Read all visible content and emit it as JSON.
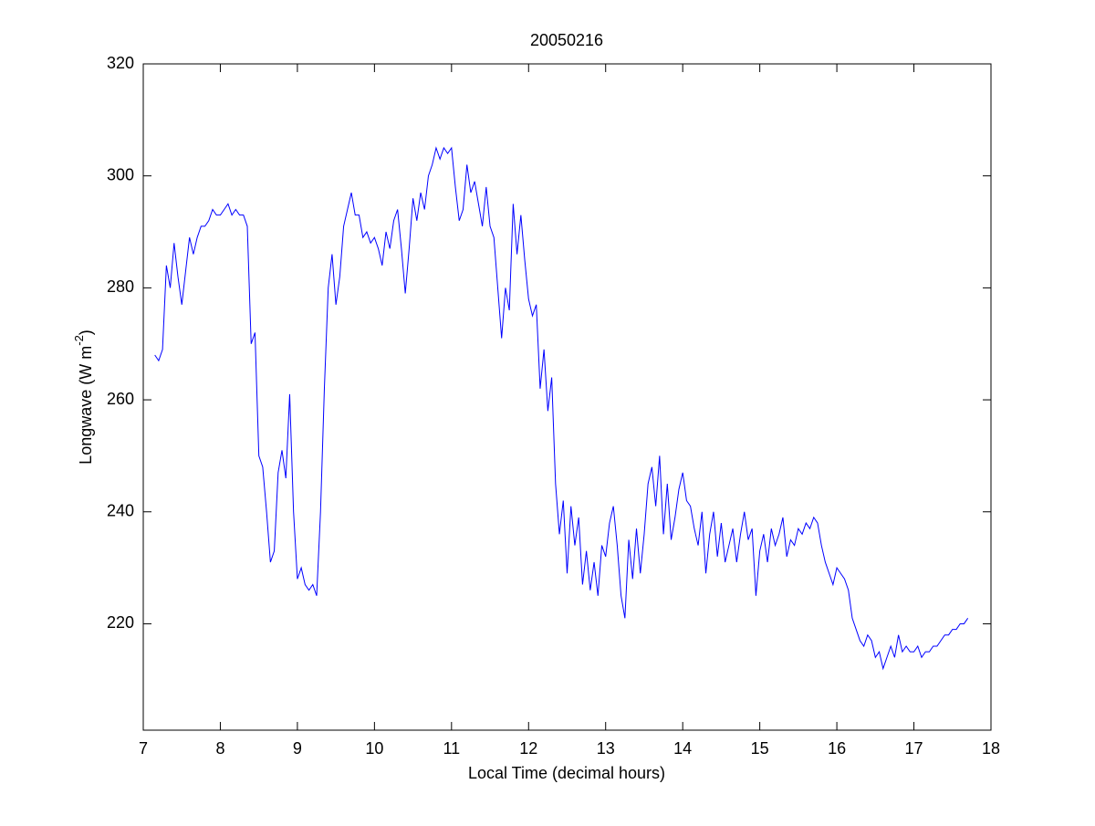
{
  "chart_data": {
    "type": "line",
    "title": "20050216",
    "xlabel": "Local Time (decimal hours)",
    "ylabel": {
      "text": "Longwave (W m",
      "superscript": "-2",
      "suffix": ")"
    },
    "x": [
      7.15,
      7.2,
      7.25,
      7.3,
      7.35,
      7.4,
      7.45,
      7.5,
      7.55,
      7.6,
      7.65,
      7.7,
      7.75,
      7.8,
      7.85,
      7.9,
      7.95,
      8.0,
      8.05,
      8.1,
      8.15,
      8.2,
      8.25,
      8.3,
      8.35,
      8.4,
      8.45,
      8.5,
      8.55,
      8.6,
      8.65,
      8.7,
      8.75,
      8.8,
      8.85,
      8.9,
      8.95,
      9.0,
      9.05,
      9.1,
      9.15,
      9.2,
      9.25,
      9.3,
      9.35,
      9.4,
      9.45,
      9.5,
      9.55,
      9.6,
      9.65,
      9.7,
      9.75,
      9.8,
      9.85,
      9.9,
      9.95,
      10.0,
      10.05,
      10.1,
      10.15,
      10.2,
      10.25,
      10.3,
      10.35,
      10.4,
      10.45,
      10.5,
      10.55,
      10.6,
      10.65,
      10.7,
      10.75,
      10.8,
      10.85,
      10.9,
      10.95,
      11.0,
      11.05,
      11.1,
      11.15,
      11.2,
      11.25,
      11.3,
      11.35,
      11.4,
      11.45,
      11.5,
      11.55,
      11.6,
      11.65,
      11.7,
      11.75,
      11.8,
      11.85,
      11.9,
      11.95,
      12.0,
      12.05,
      12.1,
      12.15,
      12.2,
      12.25,
      12.3,
      12.35,
      12.4,
      12.45,
      12.5,
      12.55,
      12.6,
      12.65,
      12.7,
      12.75,
      12.8,
      12.85,
      12.9,
      12.95,
      13.0,
      13.05,
      13.1,
      13.15,
      13.2,
      13.25,
      13.3,
      13.35,
      13.4,
      13.45,
      13.5,
      13.55,
      13.6,
      13.65,
      13.7,
      13.75,
      13.8,
      13.85,
      13.9,
      13.95,
      14.0,
      14.05,
      14.1,
      14.15,
      14.2,
      14.25,
      14.3,
      14.35,
      14.4,
      14.45,
      14.5,
      14.55,
      14.6,
      14.65,
      14.7,
      14.75,
      14.8,
      14.85,
      14.9,
      14.95,
      15.0,
      15.05,
      15.1,
      15.15,
      15.2,
      15.25,
      15.3,
      15.35,
      15.4,
      15.45,
      15.5,
      15.55,
      15.6,
      15.65,
      15.7,
      15.75,
      15.8,
      15.85,
      15.9,
      15.95,
      16.0,
      16.05,
      16.1,
      16.15,
      16.2,
      16.25,
      16.3,
      16.35,
      16.4,
      16.45,
      16.5,
      16.55,
      16.6,
      16.65,
      16.7,
      16.75,
      16.8,
      16.85,
      16.9,
      16.95,
      17.0,
      17.05,
      17.1,
      17.15,
      17.2,
      17.25,
      17.3,
      17.35,
      17.4,
      17.45,
      17.5,
      17.55,
      17.6,
      17.65,
      17.7
    ],
    "series": [
      {
        "color": "#0000ff",
        "values": [
          268,
          267,
          269,
          284,
          280,
          288,
          282,
          277,
          283,
          289,
          286,
          289,
          291,
          291,
          292,
          294,
          293,
          293,
          294,
          295,
          293,
          294,
          293,
          293,
          291,
          270,
          272,
          250,
          248,
          240,
          231,
          233,
          247,
          251,
          246,
          261,
          240,
          228,
          230,
          227,
          226,
          227,
          225,
          240,
          262,
          280,
          286,
          277,
          282,
          291,
          294,
          297,
          293,
          293,
          289,
          290,
          288,
          289,
          287,
          284,
          290,
          287,
          292,
          294,
          287,
          279,
          287,
          296,
          292,
          297,
          294,
          300,
          302,
          305,
          303,
          305,
          304,
          305,
          298,
          292,
          294,
          302,
          297,
          299,
          295,
          291,
          298,
          291,
          289,
          280,
          271,
          280,
          276,
          295,
          286,
          293,
          285,
          278,
          275,
          277,
          262,
          269,
          258,
          264,
          245,
          236,
          242,
          229,
          241,
          234,
          239,
          227,
          233,
          226,
          231,
          225,
          234,
          232,
          238,
          241,
          234,
          225,
          221,
          235,
          228,
          237,
          229,
          236,
          245,
          248,
          241,
          250,
          236,
          245,
          235,
          239,
          244,
          247,
          242,
          241,
          237,
          234,
          240,
          229,
          236,
          240,
          232,
          238,
          231,
          234,
          237,
          231,
          236,
          240,
          235,
          237,
          225,
          233,
          236,
          231,
          237,
          234,
          236,
          239,
          232,
          235,
          234,
          237,
          236,
          238,
          237,
          239,
          238,
          234,
          231,
          229,
          227,
          230,
          229,
          228,
          226,
          221,
          219,
          217,
          216,
          218,
          217,
          214,
          215,
          212,
          214,
          216,
          214,
          218,
          215,
          216,
          215,
          215,
          216,
          214,
          215,
          215,
          216,
          216,
          217,
          218,
          218,
          219,
          219,
          220,
          220,
          221
        ]
      }
    ],
    "xlim": [
      7,
      18
    ],
    "ylim": [
      201,
      320
    ],
    "xticks": [
      7,
      8,
      9,
      10,
      11,
      12,
      13,
      14,
      15,
      16,
      17,
      18
    ],
    "yticks": [
      220,
      240,
      260,
      280,
      300,
      320
    ],
    "grid": false
  }
}
